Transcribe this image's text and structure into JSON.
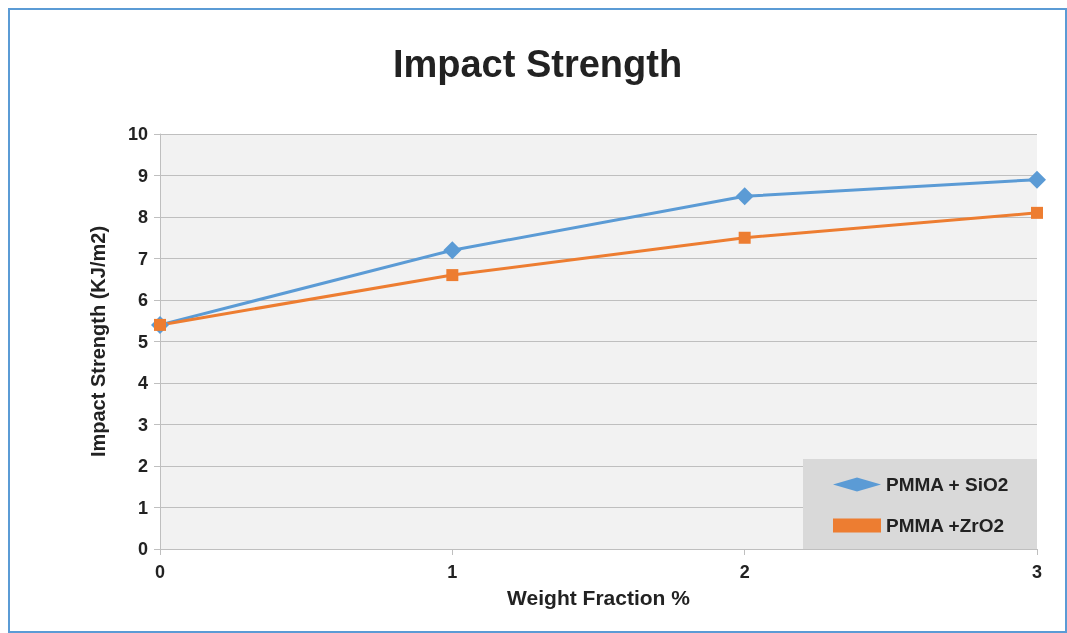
{
  "chart_data": {
    "type": "line",
    "title": "Impact Strength",
    "xlabel": "Weight Fraction %",
    "ylabel": "Impact Strength (KJ/m2)",
    "x": [
      0,
      1,
      2,
      3
    ],
    "xlim": [
      0,
      3
    ],
    "xticks": [
      0,
      1,
      2,
      3
    ],
    "ylim": [
      0,
      10
    ],
    "yticks": [
      0,
      1,
      2,
      3,
      4,
      5,
      6,
      7,
      8,
      9,
      10
    ],
    "series": [
      {
        "name": "PMMA + SiO2",
        "color": "#5b9bd5",
        "marker": "diamond",
        "values": [
          5.4,
          7.2,
          8.5,
          8.9
        ]
      },
      {
        "name": "PMMA +ZrO2",
        "color": "#ed7d31",
        "marker": "square",
        "values": [
          5.4,
          6.6,
          7.5,
          8.1
        ]
      }
    ],
    "grid": "y",
    "legend": "bottom right",
    "line_style": "solid"
  }
}
